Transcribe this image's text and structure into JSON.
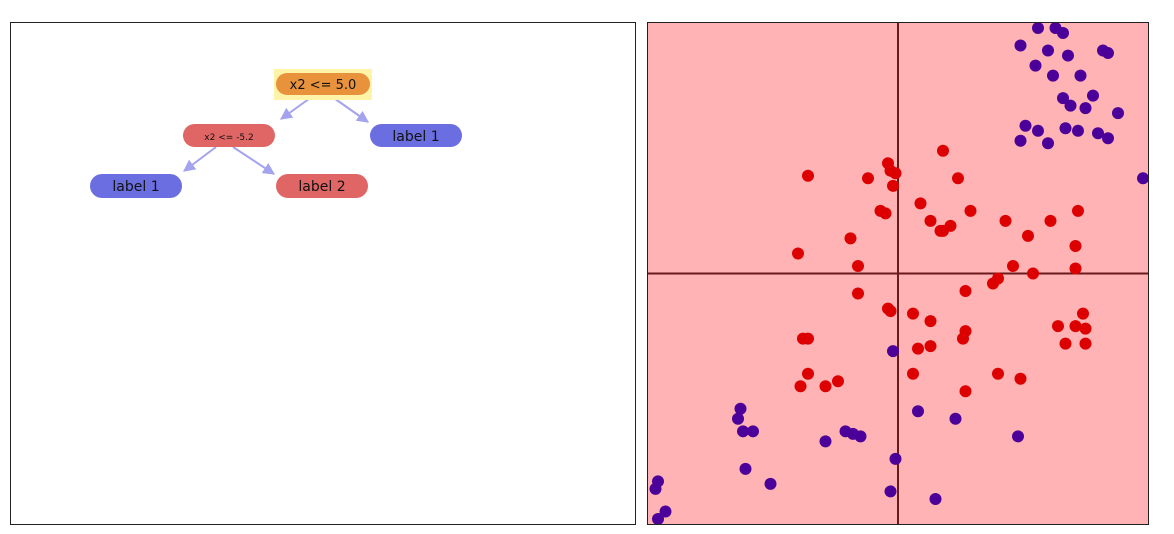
{
  "tree": {
    "root": {
      "label": "x2 <= 5.0",
      "color": "#e8923c",
      "highlight": "#fff3a8"
    },
    "left_split": {
      "label": "x2 <= -5.2",
      "color": "#e06565"
    },
    "right_leaf": {
      "label": "label 1",
      "color": "#6b6ee0"
    },
    "leaf_ll": {
      "label": "label 1",
      "color": "#6b6ee0"
    },
    "leaf_lr": {
      "label": "label 2",
      "color": "#e06565"
    },
    "edge_color": "#a3a3ee"
  },
  "scatter": {
    "background": "#ffb3b5",
    "axis_color": "#6a1a1a",
    "class_colors": {
      "label_1": "#4b0099",
      "label_2": "#dd0000"
    },
    "xlim": [
      -10,
      10
    ],
    "ylim": [
      -10,
      10
    ],
    "label_1_points": [
      [
        5.6,
        9.8
      ],
      [
        6.3,
        9.8
      ],
      [
        6.6,
        9.6
      ],
      [
        4.9,
        9.1
      ],
      [
        6.0,
        8.9
      ],
      [
        6.8,
        8.7
      ],
      [
        5.5,
        8.3
      ],
      [
        8.2,
        8.9
      ],
      [
        8.4,
        8.8
      ],
      [
        6.2,
        7.9
      ],
      [
        7.3,
        7.9
      ],
      [
        6.6,
        7.0
      ],
      [
        7.8,
        7.1
      ],
      [
        6.9,
        6.7
      ],
      [
        7.5,
        6.6
      ],
      [
        5.1,
        5.9
      ],
      [
        5.6,
        5.7
      ],
      [
        6.7,
        5.8
      ],
      [
        7.2,
        5.7
      ],
      [
        8.4,
        5.4
      ],
      [
        8.8,
        6.4
      ],
      [
        6.0,
        5.2
      ],
      [
        4.9,
        5.3
      ],
      [
        8.0,
        5.6
      ],
      [
        9.8,
        3.8
      ],
      [
        -0.2,
        -3.1
      ],
      [
        -6.3,
        -5.4
      ],
      [
        -6.4,
        -5.8
      ],
      [
        -6.2,
        -6.3
      ],
      [
        -5.8,
        -6.3
      ],
      [
        -2.9,
        -6.7
      ],
      [
        -1.8,
        -6.4
      ],
      [
        -2.1,
        -6.3
      ],
      [
        -1.5,
        -6.5
      ],
      [
        0.8,
        -5.5
      ],
      [
        2.3,
        -5.8
      ],
      [
        4.8,
        -6.5
      ],
      [
        -0.1,
        -7.4
      ],
      [
        -6.1,
        -7.8
      ],
      [
        -5.1,
        -8.4
      ],
      [
        -0.3,
        -8.7
      ],
      [
        1.5,
        -9.0
      ],
      [
        -9.6,
        -8.3
      ],
      [
        -9.7,
        -8.6
      ],
      [
        -9.3,
        -9.5
      ],
      [
        -9.6,
        -9.8
      ]
    ],
    "label_2_points": [
      [
        -3.6,
        3.9
      ],
      [
        -0.4,
        4.4
      ],
      [
        -0.3,
        4.1
      ],
      [
        -0.1,
        4.0
      ],
      [
        -1.2,
        3.8
      ],
      [
        1.8,
        4.9
      ],
      [
        2.4,
        3.8
      ],
      [
        -0.2,
        3.5
      ],
      [
        0.9,
        2.8
      ],
      [
        -0.7,
        2.5
      ],
      [
        -0.5,
        2.4
      ],
      [
        1.3,
        2.1
      ],
      [
        2.9,
        2.5
      ],
      [
        1.7,
        1.7
      ],
      [
        2.1,
        1.9
      ],
      [
        1.8,
        1.7
      ],
      [
        4.3,
        2.1
      ],
      [
        6.1,
        2.1
      ],
      [
        7.2,
        2.5
      ],
      [
        5.2,
        1.5
      ],
      [
        -1.9,
        1.4
      ],
      [
        -4.0,
        0.8
      ],
      [
        -1.6,
        0.3
      ],
      [
        -1.6,
        -0.8
      ],
      [
        7.1,
        1.1
      ],
      [
        7.1,
        0.2
      ],
      [
        4.6,
        0.3
      ],
      [
        5.4,
        0.0
      ],
      [
        4.0,
        -0.2
      ],
      [
        3.8,
        -0.4
      ],
      [
        2.7,
        -0.7
      ],
      [
        -0.4,
        -1.4
      ],
      [
        -0.3,
        -1.5
      ],
      [
        0.6,
        -1.6
      ],
      [
        1.3,
        -1.9
      ],
      [
        2.7,
        -2.3
      ],
      [
        2.6,
        -2.6
      ],
      [
        -3.8,
        -2.6
      ],
      [
        -3.6,
        -2.6
      ],
      [
        1.3,
        -2.9
      ],
      [
        0.8,
        -3.0
      ],
      [
        6.4,
        -2.1
      ],
      [
        7.1,
        -2.1
      ],
      [
        7.4,
        -1.6
      ],
      [
        7.5,
        -2.2
      ],
      [
        6.7,
        -2.8
      ],
      [
        7.5,
        -2.8
      ],
      [
        -3.6,
        -4.0
      ],
      [
        -3.9,
        -4.5
      ],
      [
        -2.9,
        -4.5
      ],
      [
        -2.4,
        -4.3
      ],
      [
        0.6,
        -4.0
      ],
      [
        2.7,
        -4.7
      ],
      [
        4.0,
        -4.0
      ],
      [
        4.9,
        -4.2
      ]
    ]
  }
}
